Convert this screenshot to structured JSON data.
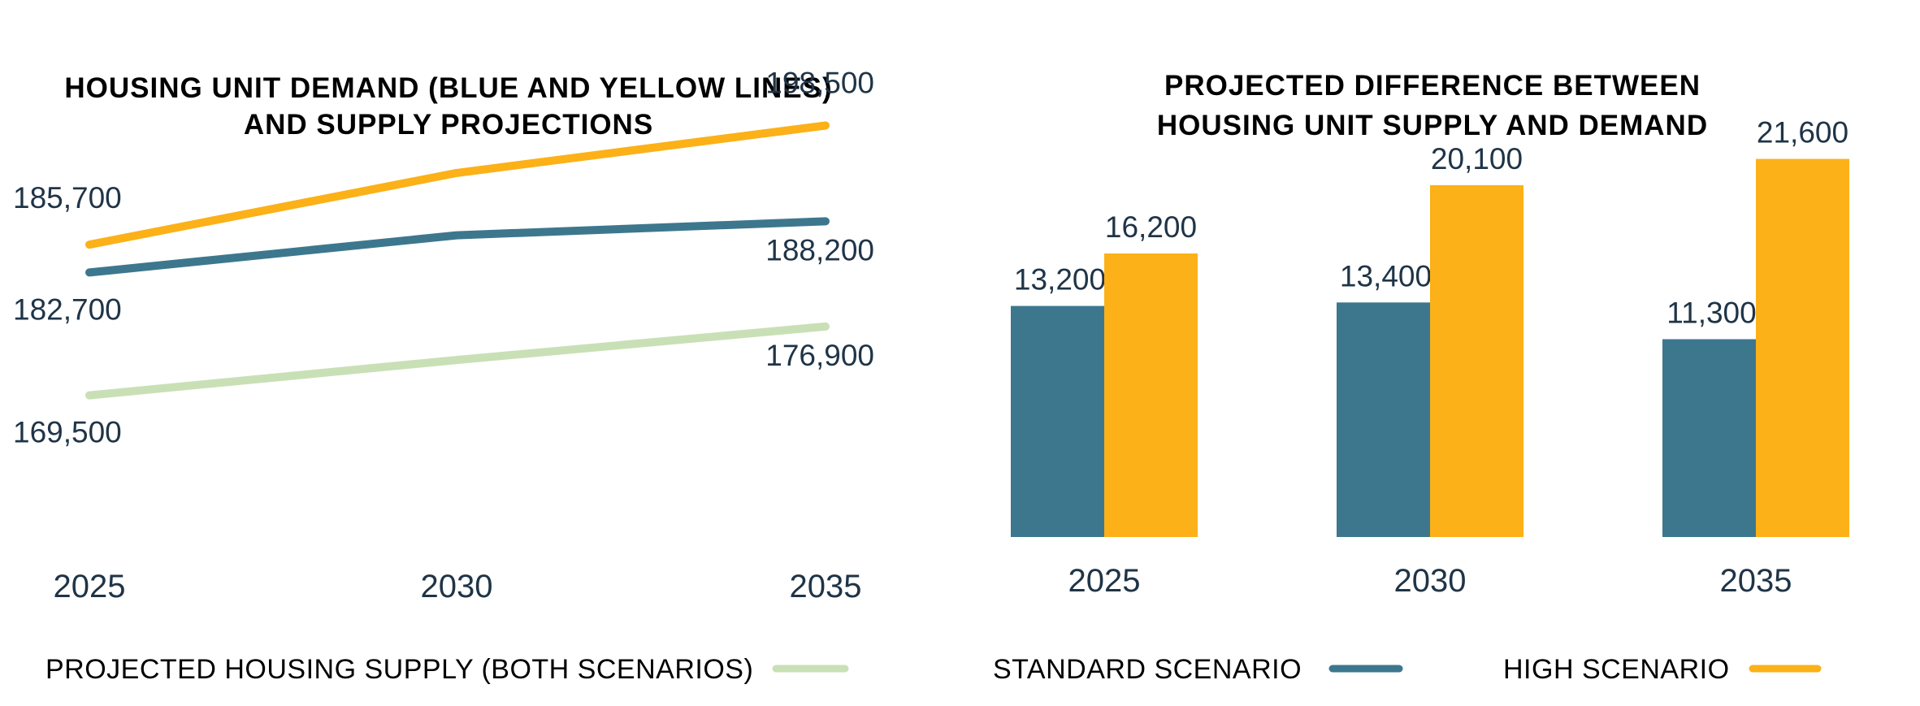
{
  "colors": {
    "supply": "#c9e0b6",
    "standard": "#3d778e",
    "high": "#fbb117",
    "text": "#1f3447"
  },
  "chart_data": [
    {
      "type": "line",
      "title": "HOUSING UNIT DEMAND (BLUE AND YELLOW LINES) AND SUPPLY PROJECTIONS",
      "title_lines": [
        "HOUSING UNIT DEMAND (BLUE AND YELLOW LINES)",
        "AND SUPPLY PROJECTIONS"
      ],
      "x": [
        "2025",
        "2030",
        "2035"
      ],
      "ylim": [
        150000,
        205000
      ],
      "grid": false,
      "series": [
        {
          "key": "high",
          "values": [
            185700,
            193400,
            198500
          ],
          "labels": [
            "185,700",
            "",
            "198,500"
          ]
        },
        {
          "key": "standard",
          "values": [
            182700,
            186700,
            188200
          ],
          "labels": [
            "182,700",
            "",
            "188,200"
          ]
        },
        {
          "key": "supply",
          "values": [
            169500,
            173300,
            176900
          ],
          "labels": [
            "169,500",
            "",
            "176,900"
          ]
        }
      ]
    },
    {
      "type": "bar",
      "title": "PROJECTED DIFFERENCE BETWEEN HOUSING UNIT SUPPLY AND DEMAND",
      "title_lines": [
        "PROJECTED DIFFERENCE BETWEEN",
        "HOUSING UNIT SUPPLY AND DEMAND"
      ],
      "categories": [
        "2025",
        "2030",
        "2035"
      ],
      "ylim": [
        0,
        22000
      ],
      "grid": false,
      "series": [
        {
          "key": "standard",
          "values": [
            13200,
            13400,
            11300
          ],
          "labels": [
            "13,200",
            "13,400",
            "11,300"
          ]
        },
        {
          "key": "high",
          "values": [
            16200,
            20100,
            21600
          ],
          "labels": [
            "16,200",
            "20,100",
            "21,600"
          ]
        }
      ]
    }
  ],
  "legend": {
    "placement": "bottom",
    "items": [
      {
        "key": "supply",
        "label": "PROJECTED HOUSING SUPPLY (BOTH SCENARIOS)"
      },
      {
        "key": "standard",
        "label": "STANDARD SCENARIO"
      },
      {
        "key": "high",
        "label": "HIGH SCENARIO"
      }
    ]
  }
}
